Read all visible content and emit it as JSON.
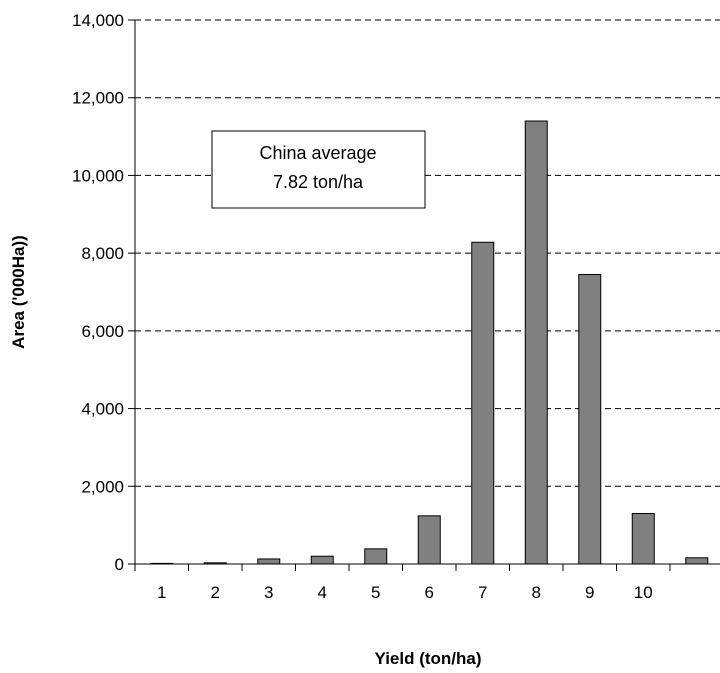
{
  "chart_data": {
    "type": "bar",
    "categories": [
      "1",
      "2",
      "3",
      "4",
      "5",
      "6",
      "7",
      "8",
      "9",
      "10",
      ""
    ],
    "values": [
      0,
      30,
      130,
      200,
      390,
      1240,
      8280,
      11400,
      7450,
      1300,
      160
    ],
    "title": "",
    "xlabel": "Yield (ton/ha)",
    "ylabel": "Area ('000Ha))",
    "ylim": [
      0,
      14000
    ],
    "yticks": [
      0,
      2000,
      4000,
      6000,
      8000,
      10000,
      12000,
      14000
    ],
    "ytick_labels": [
      "0",
      "2,000",
      "4,000",
      "6,000",
      "8,000",
      "10,000",
      "12,000",
      "14,000"
    ],
    "grid": true,
    "legend": "none",
    "bar_color": "#808080",
    "annotation": {
      "line1": "China average",
      "line2": "7.82 ton/ha"
    }
  }
}
